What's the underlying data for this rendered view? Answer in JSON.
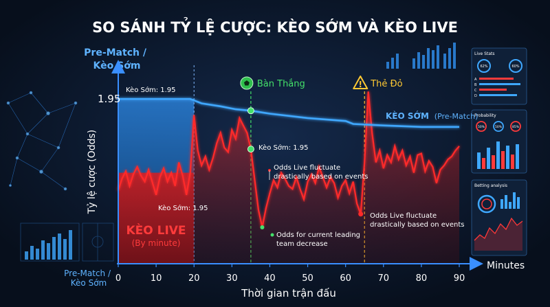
{
  "chart_data": {
    "type": "line",
    "title": "SO SÁNH TỶ LỆ CƯỢC: KÈO SỚM VÀ KÈO LIVE",
    "xlabel": "Thời gian trận đấu",
    "x_unit": "Minutes",
    "ylabel": "Tỷ lệ cược (Odds)",
    "xlim": [
      0,
      90
    ],
    "x_ticks": [
      0,
      10,
      20,
      30,
      40,
      50,
      60,
      70,
      80,
      90
    ],
    "x_tick_labels": [
      "0",
      "10",
      "20",
      "30",
      "40",
      "50",
      "60",
      "70",
      "80",
      "90"
    ],
    "x_origin_label": "Pre-Match / Kèo Sớm",
    "y_tick_value": 1.95,
    "y_tick_label": "1.95",
    "pre_match_header": "Pre-Match / Kèo Sớm",
    "series": [
      {
        "name": "KÈO SỚM",
        "name_suffix": "(Pre-Match)",
        "color": "#3fa8ff",
        "points": [
          [
            0,
            1.95
          ],
          [
            5,
            1.95
          ],
          [
            10,
            1.95
          ],
          [
            15,
            1.95
          ],
          [
            19,
            1.95
          ],
          [
            22,
            1.92
          ],
          [
            27,
            1.9
          ],
          [
            31,
            1.88
          ],
          [
            35,
            1.87
          ],
          [
            40,
            1.85
          ],
          [
            50,
            1.82
          ],
          [
            60,
            1.8
          ],
          [
            62,
            1.78
          ],
          [
            70,
            1.77
          ],
          [
            80,
            1.76
          ],
          [
            90,
            1.76
          ]
        ]
      },
      {
        "name": "KÈO LIVE",
        "name_suffix": "(By minute)",
        "color": "#ff2a2a",
        "points": [
          [
            0,
            1.33
          ],
          [
            1,
            1.41
          ],
          [
            2,
            1.46
          ],
          [
            3,
            1.36
          ],
          [
            4,
            1.44
          ],
          [
            5,
            1.49
          ],
          [
            6,
            1.43
          ],
          [
            7,
            1.39
          ],
          [
            8,
            1.47
          ],
          [
            10,
            1.3
          ],
          [
            11,
            1.42
          ],
          [
            12,
            1.48
          ],
          [
            13,
            1.39
          ],
          [
            14,
            1.45
          ],
          [
            15,
            1.36
          ],
          [
            16,
            1.52
          ],
          [
            17,
            1.43
          ],
          [
            18,
            1.3
          ],
          [
            19,
            1.45
          ],
          [
            20,
            1.84
          ],
          [
            21,
            1.6
          ],
          [
            22,
            1.5
          ],
          [
            23,
            1.56
          ],
          [
            24,
            1.47
          ],
          [
            25,
            1.55
          ],
          [
            26,
            1.65
          ],
          [
            27,
            1.72
          ],
          [
            28,
            1.62
          ],
          [
            29,
            1.59
          ],
          [
            30,
            1.74
          ],
          [
            31,
            1.68
          ],
          [
            32,
            1.82
          ],
          [
            33,
            1.77
          ],
          [
            34,
            1.72
          ],
          [
            35,
            1.61
          ],
          [
            37,
            1.2
          ],
          [
            38,
            1.08
          ],
          [
            39,
            1.21
          ],
          [
            40,
            1.31
          ],
          [
            41,
            1.4
          ],
          [
            42,
            1.35
          ],
          [
            43,
            1.45
          ],
          [
            44,
            1.41
          ],
          [
            45,
            1.36
          ],
          [
            46,
            1.34
          ],
          [
            47,
            1.42
          ],
          [
            48,
            1.34
          ],
          [
            49,
            1.27
          ],
          [
            50,
            1.39
          ],
          [
            51,
            1.44
          ],
          [
            52,
            1.38
          ],
          [
            53,
            1.49
          ],
          [
            54,
            1.42
          ],
          [
            55,
            1.35
          ],
          [
            56,
            1.42
          ],
          [
            57,
            1.38
          ],
          [
            58,
            1.28
          ],
          [
            59,
            1.36
          ],
          [
            60,
            1.4
          ],
          [
            61,
            1.31
          ],
          [
            62,
            1.39
          ],
          [
            63,
            1.24
          ],
          [
            64,
            1.17
          ],
          [
            65,
            1.52
          ],
          [
            66,
            2.0
          ],
          [
            67,
            1.72
          ],
          [
            68,
            1.52
          ],
          [
            69,
            1.6
          ],
          [
            70,
            1.48
          ],
          [
            71,
            1.57
          ],
          [
            72,
            1.52
          ],
          [
            73,
            1.63
          ],
          [
            74,
            1.54
          ],
          [
            75,
            1.6
          ],
          [
            76,
            1.5
          ],
          [
            77,
            1.56
          ],
          [
            78,
            1.45
          ],
          [
            79,
            1.57
          ],
          [
            80,
            1.58
          ],
          [
            81,
            1.46
          ],
          [
            82,
            1.53
          ],
          [
            83,
            1.49
          ],
          [
            84,
            1.38
          ],
          [
            85,
            1.47
          ],
          [
            86,
            1.5
          ],
          [
            87,
            1.54
          ],
          [
            88,
            1.56
          ],
          [
            89,
            1.6
          ],
          [
            90,
            1.63
          ]
        ]
      }
    ],
    "events": [
      {
        "name": "Bàn Thắng",
        "minute": 35,
        "color": "#44e06a",
        "icon": "soccer-ball-icon"
      },
      {
        "name": "Thẻ Đỏ",
        "minute": 65,
        "color": "#ffc933",
        "icon": "warning-triangle-icon"
      }
    ],
    "annotations": {
      "pre_match_start": "Kèo Sớm: 1.95",
      "pre_match_at_goal": "Kèo Sớm: 1.95",
      "live_at_start": "Kèo Sớm: 1.95",
      "fluctuate_1": "Odds Live fluctuate drastically based on events",
      "fluctuate_2": "Odds Live fluctuate drastically based on events",
      "leading_team": "Odds for current leading team decrease"
    }
  },
  "side_panels": {
    "live_stats": {
      "title": "Live Stats",
      "gauges": [
        "62%",
        "60%"
      ],
      "rows": [
        "A",
        "B",
        "C",
        "D"
      ]
    },
    "probability": {
      "title": "Probability",
      "gauges": [
        "50%",
        "50%",
        "85%"
      ]
    },
    "betting_analysis": {
      "title": "Betting analysis"
    }
  },
  "colors": {
    "background": "#0a1424",
    "pre_match": "#3fa8ff",
    "live": "#ff2a2a",
    "goal": "#44e06a",
    "red_card": "#ffc933",
    "axis": "#3a8fff"
  }
}
